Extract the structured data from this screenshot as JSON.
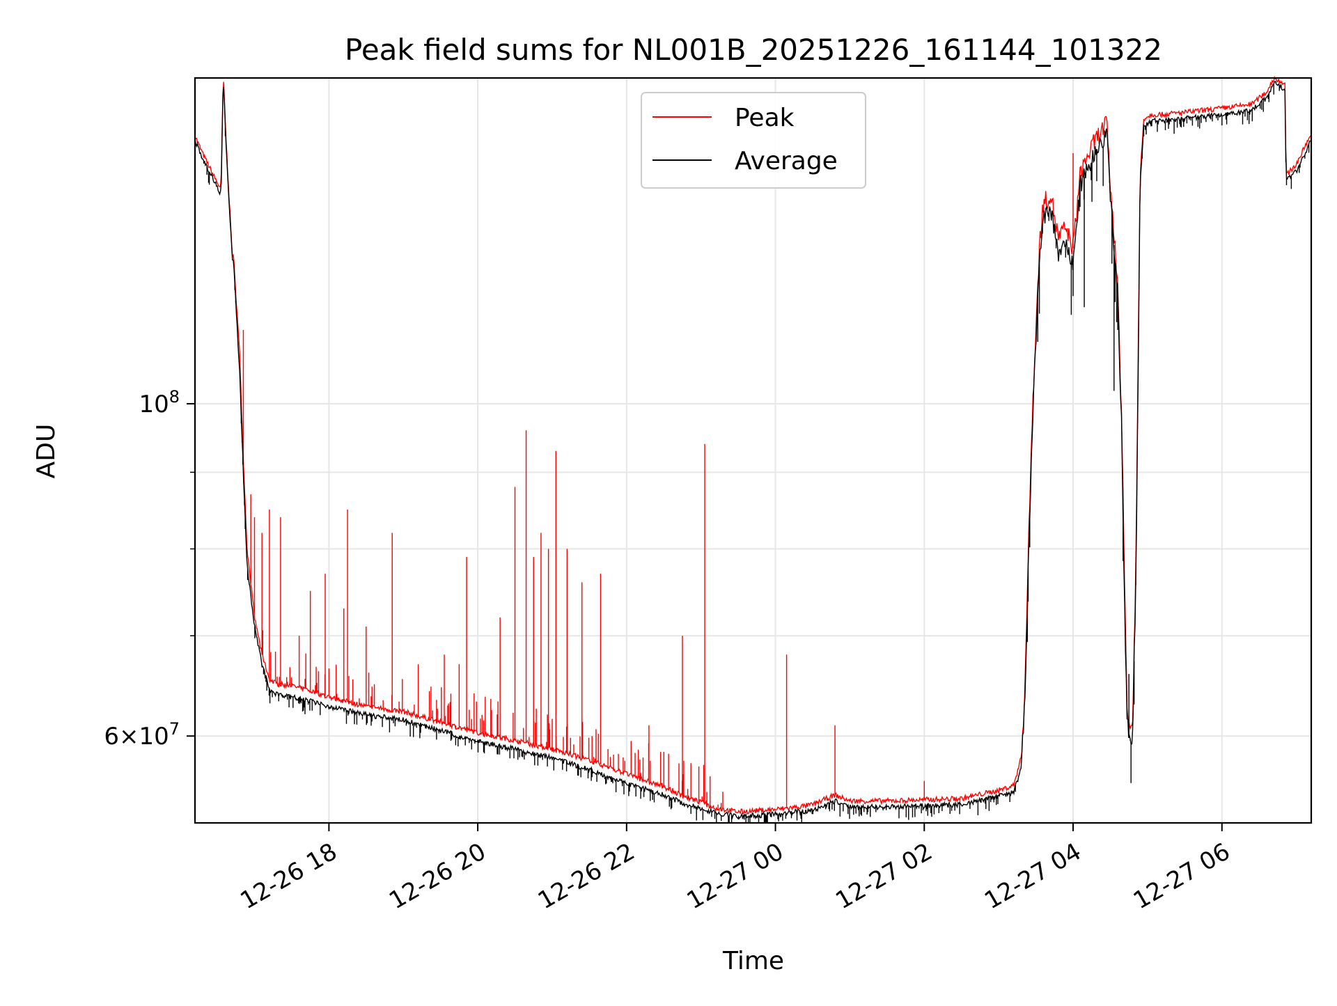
{
  "chart_data": {
    "type": "line",
    "title": "Peak field sums for NL001B_20251226_161144_101322",
    "xlabel": "Time",
    "ylabel": "ADU",
    "x_unit": "hours since 2025-12-26 00:00",
    "xlim": [
      16.2,
      31.2
    ],
    "ylim": [
      52500000,
      165000000
    ],
    "yscale": "log",
    "grid": true,
    "legend_position": "upper center",
    "x_ticks": [
      {
        "value": 18,
        "label": "12-26 18"
      },
      {
        "value": 20,
        "label": "12-26 20"
      },
      {
        "value": 22,
        "label": "12-26 22"
      },
      {
        "value": 24,
        "label": "12-27 00"
      },
      {
        "value": 26,
        "label": "12-27 02"
      },
      {
        "value": 28,
        "label": "12-27 04"
      },
      {
        "value": 30,
        "label": "12-27 06"
      }
    ],
    "y_ticks": [
      {
        "value": 60000000,
        "label_base": "6×10",
        "label_exp": "7"
      },
      {
        "value": 100000000,
        "label_base": "10",
        "label_exp": "8"
      }
    ],
    "y_minor_grid": [
      70000000,
      80000000,
      90000000
    ],
    "series": [
      {
        "name": "Average",
        "color": "#000000",
        "x": [
          16.2,
          16.3,
          16.45,
          16.55,
          16.58,
          16.62,
          16.7,
          16.72,
          16.8,
          16.85,
          16.9,
          17.0,
          17.1,
          17.2,
          17.3,
          17.5,
          17.8,
          18.0,
          18.5,
          19.0,
          19.5,
          20.0,
          20.5,
          21.0,
          21.5,
          22.0,
          22.5,
          22.8,
          23.0,
          23.2,
          23.5,
          24.0,
          24.3,
          24.5,
          24.8,
          25.0,
          25.5,
          26.0,
          26.5,
          27.0,
          27.2,
          27.3,
          27.35,
          27.4,
          27.45,
          27.5,
          27.55,
          27.6,
          27.7,
          27.8,
          27.9,
          28.0,
          28.1,
          28.3,
          28.45,
          28.5,
          28.6,
          28.65,
          28.7,
          28.72,
          28.75,
          28.8,
          28.85,
          28.9,
          28.95,
          29.05,
          29.2,
          29.5,
          30.0,
          30.4,
          30.6,
          30.7,
          30.85,
          30.86,
          31.0,
          31.2
        ],
        "y": [
          150000000,
          146000000,
          141000000,
          138000000,
          165000000,
          148000000,
          125000000,
          124000000,
          105000000,
          90000000,
          78000000,
          71000000,
          67000000,
          64500000,
          64000000,
          63800000,
          63200000,
          62800000,
          62000000,
          61500000,
          60500000,
          59500000,
          58800000,
          58000000,
          57000000,
          55800000,
          54800000,
          54000000,
          53700000,
          53300000,
          53000000,
          53200000,
          53400000,
          53500000,
          54300000,
          53800000,
          53800000,
          53900000,
          54000000,
          54700000,
          55000000,
          57000000,
          63000000,
          78000000,
          96000000,
          110000000,
          125000000,
          133000000,
          135000000,
          126000000,
          128000000,
          124000000,
          140000000,
          147000000,
          152000000,
          138000000,
          118000000,
          97000000,
          70000000,
          63000000,
          60000000,
          60000000,
          80000000,
          140000000,
          153000000,
          154500000,
          154500000,
          155000000,
          156000000,
          157000000,
          160000000,
          164000000,
          162000000,
          141000000,
          143000000,
          150000000
        ]
      },
      {
        "name": "Peak",
        "color": "#ff0000",
        "x": [
          16.2,
          16.3,
          16.45,
          16.55,
          16.58,
          16.62,
          16.7,
          16.72,
          16.8,
          16.85,
          16.9,
          17.0,
          17.1,
          17.2,
          17.3,
          17.5,
          17.8,
          18.0,
          18.5,
          19.0,
          19.5,
          20.0,
          20.5,
          21.0,
          21.5,
          22.0,
          22.5,
          22.8,
          23.0,
          23.2,
          23.5,
          24.0,
          24.3,
          24.5,
          24.8,
          25.0,
          25.5,
          26.0,
          26.5,
          27.0,
          27.2,
          27.3,
          27.35,
          27.4,
          27.45,
          27.5,
          27.55,
          27.6,
          27.7,
          27.8,
          27.9,
          28.0,
          28.1,
          28.3,
          28.45,
          28.5,
          28.6,
          28.65,
          28.7,
          28.72,
          28.75,
          28.8,
          28.85,
          28.9,
          28.95,
          29.05,
          29.2,
          29.5,
          30.0,
          30.4,
          30.6,
          30.7,
          30.85,
          30.86,
          31.0,
          31.2
        ],
        "y": [
          151000000,
          147000000,
          142000000,
          139000000,
          166000000,
          149000000,
          126000000,
          125000000,
          108000000,
          92000000,
          80000000,
          72000000,
          68000000,
          65500000,
          65000000,
          64800000,
          64200000,
          63700000,
          62800000,
          62300000,
          61300000,
          60300000,
          59600000,
          58800000,
          57800000,
          56600000,
          55500000,
          54600000,
          54200000,
          53700000,
          53400000,
          53600000,
          53800000,
          54000000,
          54800000,
          54300000,
          54300000,
          54400000,
          54500000,
          55200000,
          55600000,
          58000000,
          64000000,
          80000000,
          98000000,
          112000000,
          128000000,
          136000000,
          138000000,
          129000000,
          131000000,
          127000000,
          143000000,
          150000000,
          154000000,
          140000000,
          120000000,
          99000000,
          72000000,
          64000000,
          61000000,
          61000000,
          82000000,
          142000000,
          155000000,
          156000000,
          156000000,
          156500000,
          157500000,
          158500000,
          161500000,
          165000000,
          163500000,
          142000000,
          144500000,
          151500000
        ]
      }
    ],
    "peak_spikes": [
      {
        "x": 16.85,
        "y": 112000000
      },
      {
        "x": 16.95,
        "y": 87000000
      },
      {
        "x": 17.0,
        "y": 84000000
      },
      {
        "x": 17.1,
        "y": 82000000
      },
      {
        "x": 17.2,
        "y": 85000000
      },
      {
        "x": 17.35,
        "y": 84000000
      },
      {
        "x": 17.6,
        "y": 70000000
      },
      {
        "x": 17.75,
        "y": 75000000
      },
      {
        "x": 17.95,
        "y": 77000000
      },
      {
        "x": 18.2,
        "y": 73000000
      },
      {
        "x": 18.25,
        "y": 85000000
      },
      {
        "x": 18.5,
        "y": 71000000
      },
      {
        "x": 18.85,
        "y": 82000000
      },
      {
        "x": 19.2,
        "y": 67000000
      },
      {
        "x": 19.55,
        "y": 68000000
      },
      {
        "x": 19.75,
        "y": 67000000
      },
      {
        "x": 19.85,
        "y": 79000000
      },
      {
        "x": 20.3,
        "y": 72000000
      },
      {
        "x": 20.5,
        "y": 88000000
      },
      {
        "x": 20.65,
        "y": 96000000
      },
      {
        "x": 20.75,
        "y": 79000000
      },
      {
        "x": 20.85,
        "y": 82000000
      },
      {
        "x": 20.95,
        "y": 80000000
      },
      {
        "x": 21.05,
        "y": 93000000
      },
      {
        "x": 21.2,
        "y": 80000000
      },
      {
        "x": 21.4,
        "y": 76000000
      },
      {
        "x": 21.65,
        "y": 77000000
      },
      {
        "x": 22.3,
        "y": 61000000
      },
      {
        "x": 22.75,
        "y": 70000000
      },
      {
        "x": 23.05,
        "y": 94000000
      },
      {
        "x": 24.15,
        "y": 68000000
      },
      {
        "x": 24.8,
        "y": 61000000
      },
      {
        "x": 26.0,
        "y": 56000000
      },
      {
        "x": 28.0,
        "y": 147000000
      }
    ],
    "avg_dips": [
      {
        "x": 28.0,
        "y": 118000000
      },
      {
        "x": 28.15,
        "y": 116000000
      },
      {
        "x": 28.55,
        "y": 102000000
      },
      {
        "x": 28.6,
        "y": 112000000
      },
      {
        "x": 28.75,
        "y": 66000000
      },
      {
        "x": 28.82,
        "y": 63000000
      }
    ]
  }
}
